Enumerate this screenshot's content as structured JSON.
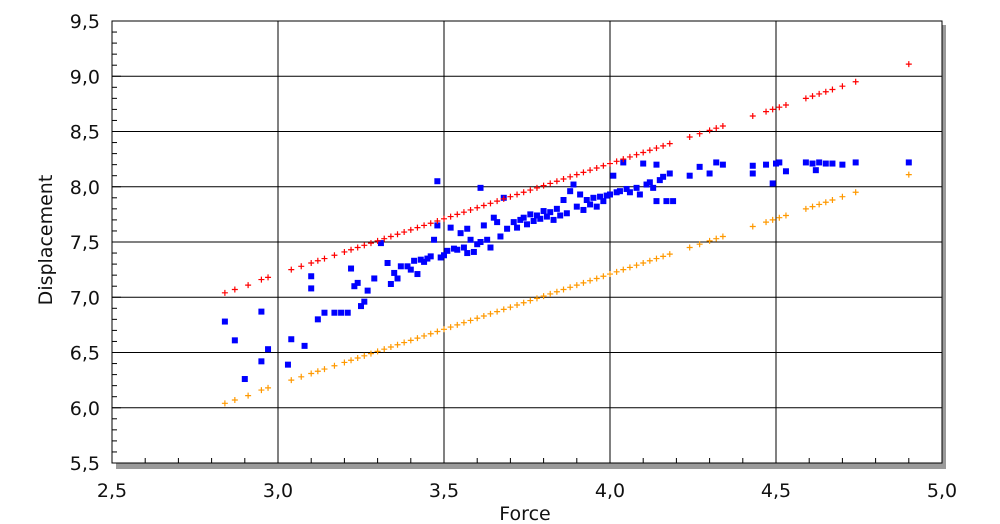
{
  "chart_data": {
    "type": "scatter",
    "title": "",
    "xlabel": "Force",
    "ylabel": "Displacement",
    "xlim": [
      2.5,
      5.0
    ],
    "ylim": [
      5.5,
      9.5
    ],
    "x_ticks": [
      "2,5",
      "3,0",
      "3,5",
      "4,0",
      "4,5",
      "5,0"
    ],
    "y_ticks": [
      "5,5",
      "6,0",
      "6,5",
      "7,0",
      "7,5",
      "8,0",
      "8,5",
      "9,0",
      "9,5"
    ],
    "grid": true,
    "legend": "none",
    "series": [
      {
        "marker": "square",
        "color": "#0000ff",
        "points": [
          [
            2.84,
            6.78
          ],
          [
            2.87,
            6.61
          ],
          [
            2.9,
            6.26
          ],
          [
            2.95,
            6.87
          ],
          [
            2.95,
            6.42
          ],
          [
            2.97,
            6.53
          ],
          [
            3.03,
            6.39
          ],
          [
            3.04,
            6.62
          ],
          [
            3.08,
            6.56
          ],
          [
            3.1,
            7.19
          ],
          [
            3.1,
            7.08
          ],
          [
            3.12,
            6.8
          ],
          [
            3.14,
            6.86
          ],
          [
            3.17,
            6.86
          ],
          [
            3.19,
            6.86
          ],
          [
            3.21,
            6.86
          ],
          [
            3.22,
            7.26
          ],
          [
            3.23,
            7.1
          ],
          [
            3.24,
            7.13
          ],
          [
            3.25,
            6.92
          ],
          [
            3.26,
            6.96
          ],
          [
            3.27,
            7.06
          ],
          [
            3.29,
            7.17
          ],
          [
            3.31,
            7.49
          ],
          [
            3.33,
            7.31
          ],
          [
            3.34,
            7.12
          ],
          [
            3.35,
            7.22
          ],
          [
            3.36,
            7.17
          ],
          [
            3.37,
            7.28
          ],
          [
            3.39,
            7.28
          ],
          [
            3.4,
            7.25
          ],
          [
            3.41,
            7.33
          ],
          [
            3.42,
            7.21
          ],
          [
            3.43,
            7.34
          ],
          [
            3.44,
            7.32
          ],
          [
            3.45,
            7.35
          ],
          [
            3.46,
            7.37
          ],
          [
            3.47,
            7.52
          ],
          [
            3.48,
            7.65
          ],
          [
            3.48,
            8.05
          ],
          [
            3.49,
            7.36
          ],
          [
            3.5,
            7.38
          ],
          [
            3.51,
            7.42
          ],
          [
            3.52,
            7.63
          ],
          [
            3.53,
            7.44
          ],
          [
            3.54,
            7.43
          ],
          [
            3.55,
            7.58
          ],
          [
            3.56,
            7.45
          ],
          [
            3.57,
            7.62
          ],
          [
            3.57,
            7.4
          ],
          [
            3.58,
            7.52
          ],
          [
            3.59,
            7.41
          ],
          [
            3.6,
            7.48
          ],
          [
            3.61,
            7.99
          ],
          [
            3.61,
            7.5
          ],
          [
            3.62,
            7.65
          ],
          [
            3.63,
            7.52
          ],
          [
            3.64,
            7.45
          ],
          [
            3.65,
            7.72
          ],
          [
            3.66,
            7.68
          ],
          [
            3.67,
            7.55
          ],
          [
            3.68,
            7.9
          ],
          [
            3.69,
            7.62
          ],
          [
            3.71,
            7.68
          ],
          [
            3.72,
            7.63
          ],
          [
            3.73,
            7.7
          ],
          [
            3.74,
            7.72
          ],
          [
            3.75,
            7.66
          ],
          [
            3.76,
            7.75
          ],
          [
            3.77,
            7.69
          ],
          [
            3.78,
            7.74
          ],
          [
            3.79,
            7.71
          ],
          [
            3.8,
            7.78
          ],
          [
            3.81,
            7.73
          ],
          [
            3.82,
            7.77
          ],
          [
            3.83,
            7.7
          ],
          [
            3.84,
            7.8
          ],
          [
            3.85,
            7.74
          ],
          [
            3.86,
            7.88
          ],
          [
            3.87,
            7.76
          ],
          [
            3.88,
            7.96
          ],
          [
            3.89,
            8.02
          ],
          [
            3.9,
            7.82
          ],
          [
            3.91,
            7.93
          ],
          [
            3.92,
            7.79
          ],
          [
            3.93,
            7.88
          ],
          [
            3.94,
            7.84
          ],
          [
            3.95,
            7.9
          ],
          [
            3.96,
            7.82
          ],
          [
            3.97,
            7.91
          ],
          [
            3.98,
            7.87
          ],
          [
            3.99,
            7.92
          ],
          [
            4.0,
            7.93
          ],
          [
            4.01,
            8.1
          ],
          [
            4.02,
            7.95
          ],
          [
            4.03,
            7.96
          ],
          [
            4.04,
            8.22
          ],
          [
            4.05,
            7.98
          ],
          [
            4.06,
            7.95
          ],
          [
            4.08,
            7.99
          ],
          [
            4.09,
            7.93
          ],
          [
            4.1,
            8.21
          ],
          [
            4.11,
            8.02
          ],
          [
            4.12,
            8.04
          ],
          [
            4.13,
            7.99
          ],
          [
            4.14,
            8.2
          ],
          [
            4.14,
            7.87
          ],
          [
            4.15,
            8.06
          ],
          [
            4.16,
            8.09
          ],
          [
            4.17,
            7.87
          ],
          [
            4.18,
            8.12
          ],
          [
            4.19,
            7.87
          ],
          [
            4.24,
            8.1
          ],
          [
            4.27,
            8.18
          ],
          [
            4.3,
            8.12
          ],
          [
            4.32,
            8.22
          ],
          [
            4.34,
            8.2
          ],
          [
            4.43,
            8.19
          ],
          [
            4.43,
            8.12
          ],
          [
            4.47,
            8.2
          ],
          [
            4.49,
            8.03
          ],
          [
            4.5,
            8.21
          ],
          [
            4.51,
            8.22
          ],
          [
            4.53,
            8.14
          ],
          [
            4.59,
            8.22
          ],
          [
            4.61,
            8.21
          ],
          [
            4.62,
            8.15
          ],
          [
            4.63,
            8.22
          ],
          [
            4.65,
            8.21
          ],
          [
            4.67,
            8.21
          ],
          [
            4.7,
            8.2
          ],
          [
            4.74,
            8.22
          ],
          [
            4.9,
            8.22
          ]
        ]
      },
      {
        "marker": "plus",
        "color": "#ff0000",
        "points": [
          [
            2.84,
            7.04
          ],
          [
            2.87,
            7.07
          ],
          [
            2.91,
            7.11
          ],
          [
            2.95,
            7.16
          ],
          [
            2.97,
            7.18
          ],
          [
            3.04,
            7.25
          ],
          [
            3.07,
            7.28
          ],
          [
            3.1,
            7.31
          ],
          [
            3.12,
            7.33
          ],
          [
            3.14,
            7.35
          ],
          [
            3.17,
            7.38
          ],
          [
            3.2,
            7.41
          ],
          [
            3.22,
            7.43
          ],
          [
            3.24,
            7.45
          ],
          [
            3.26,
            7.47
          ],
          [
            3.28,
            7.49
          ],
          [
            3.3,
            7.51
          ],
          [
            3.32,
            7.53
          ],
          [
            3.34,
            7.55
          ],
          [
            3.36,
            7.57
          ],
          [
            3.38,
            7.59
          ],
          [
            3.4,
            7.61
          ],
          [
            3.42,
            7.63
          ],
          [
            3.44,
            7.65
          ],
          [
            3.46,
            7.67
          ],
          [
            3.48,
            7.69
          ],
          [
            3.5,
            7.71
          ],
          [
            3.52,
            7.73
          ],
          [
            3.54,
            7.75
          ],
          [
            3.56,
            7.77
          ],
          [
            3.58,
            7.79
          ],
          [
            3.6,
            7.81
          ],
          [
            3.62,
            7.83
          ],
          [
            3.64,
            7.85
          ],
          [
            3.66,
            7.87
          ],
          [
            3.68,
            7.89
          ],
          [
            3.7,
            7.91
          ],
          [
            3.72,
            7.93
          ],
          [
            3.74,
            7.95
          ],
          [
            3.76,
            7.97
          ],
          [
            3.78,
            7.99
          ],
          [
            3.8,
            8.01
          ],
          [
            3.82,
            8.03
          ],
          [
            3.84,
            8.05
          ],
          [
            3.86,
            8.07
          ],
          [
            3.88,
            8.09
          ],
          [
            3.9,
            8.11
          ],
          [
            3.92,
            8.13
          ],
          [
            3.94,
            8.15
          ],
          [
            3.96,
            8.17
          ],
          [
            3.98,
            8.19
          ],
          [
            4.0,
            8.21
          ],
          [
            4.02,
            8.23
          ],
          [
            4.04,
            8.25
          ],
          [
            4.06,
            8.27
          ],
          [
            4.08,
            8.29
          ],
          [
            4.1,
            8.31
          ],
          [
            4.12,
            8.33
          ],
          [
            4.14,
            8.35
          ],
          [
            4.16,
            8.37
          ],
          [
            4.18,
            8.39
          ],
          [
            4.24,
            8.45
          ],
          [
            4.27,
            8.48
          ],
          [
            4.3,
            8.51
          ],
          [
            4.32,
            8.53
          ],
          [
            4.34,
            8.55
          ],
          [
            4.43,
            8.64
          ],
          [
            4.47,
            8.68
          ],
          [
            4.49,
            8.7
          ],
          [
            4.51,
            8.72
          ],
          [
            4.53,
            8.74
          ],
          [
            4.59,
            8.8
          ],
          [
            4.61,
            8.82
          ],
          [
            4.63,
            8.84
          ],
          [
            4.65,
            8.86
          ],
          [
            4.67,
            8.88
          ],
          [
            4.7,
            8.91
          ],
          [
            4.74,
            8.95
          ],
          [
            4.9,
            9.11
          ]
        ]
      },
      {
        "marker": "plus",
        "color": "#ff9900",
        "points": [
          [
            2.84,
            6.04
          ],
          [
            2.87,
            6.07
          ],
          [
            2.91,
            6.11
          ],
          [
            2.95,
            6.16
          ],
          [
            2.97,
            6.18
          ],
          [
            3.04,
            6.25
          ],
          [
            3.07,
            6.28
          ],
          [
            3.1,
            6.31
          ],
          [
            3.12,
            6.33
          ],
          [
            3.14,
            6.35
          ],
          [
            3.17,
            6.38
          ],
          [
            3.2,
            6.41
          ],
          [
            3.22,
            6.43
          ],
          [
            3.24,
            6.45
          ],
          [
            3.26,
            6.47
          ],
          [
            3.28,
            6.49
          ],
          [
            3.3,
            6.51
          ],
          [
            3.32,
            6.53
          ],
          [
            3.34,
            6.55
          ],
          [
            3.36,
            6.57
          ],
          [
            3.38,
            6.59
          ],
          [
            3.4,
            6.61
          ],
          [
            3.42,
            6.63
          ],
          [
            3.44,
            6.65
          ],
          [
            3.46,
            6.67
          ],
          [
            3.48,
            6.69
          ],
          [
            3.5,
            6.71
          ],
          [
            3.52,
            6.73
          ],
          [
            3.54,
            6.75
          ],
          [
            3.56,
            6.77
          ],
          [
            3.58,
            6.79
          ],
          [
            3.6,
            6.81
          ],
          [
            3.62,
            6.83
          ],
          [
            3.64,
            6.85
          ],
          [
            3.66,
            6.87
          ],
          [
            3.68,
            6.89
          ],
          [
            3.7,
            6.91
          ],
          [
            3.72,
            6.93
          ],
          [
            3.74,
            6.95
          ],
          [
            3.76,
            6.97
          ],
          [
            3.78,
            6.99
          ],
          [
            3.8,
            7.01
          ],
          [
            3.82,
            7.03
          ],
          [
            3.84,
            7.05
          ],
          [
            3.86,
            7.07
          ],
          [
            3.88,
            7.09
          ],
          [
            3.9,
            7.11
          ],
          [
            3.92,
            7.13
          ],
          [
            3.94,
            7.15
          ],
          [
            3.96,
            7.17
          ],
          [
            3.98,
            7.19
          ],
          [
            4.0,
            7.21
          ],
          [
            4.02,
            7.23
          ],
          [
            4.04,
            7.25
          ],
          [
            4.06,
            7.27
          ],
          [
            4.08,
            7.29
          ],
          [
            4.1,
            7.31
          ],
          [
            4.12,
            7.33
          ],
          [
            4.14,
            7.35
          ],
          [
            4.16,
            7.37
          ],
          [
            4.18,
            7.39
          ],
          [
            4.24,
            7.45
          ],
          [
            4.27,
            7.48
          ],
          [
            4.3,
            7.51
          ],
          [
            4.32,
            7.53
          ],
          [
            4.34,
            7.55
          ],
          [
            4.43,
            7.64
          ],
          [
            4.47,
            7.68
          ],
          [
            4.49,
            7.7
          ],
          [
            4.51,
            7.72
          ],
          [
            4.53,
            7.74
          ],
          [
            4.59,
            7.8
          ],
          [
            4.61,
            7.82
          ],
          [
            4.63,
            7.84
          ],
          [
            4.65,
            7.86
          ],
          [
            4.67,
            7.88
          ],
          [
            4.7,
            7.91
          ],
          [
            4.74,
            7.95
          ],
          [
            4.9,
            8.11
          ]
        ]
      }
    ]
  }
}
